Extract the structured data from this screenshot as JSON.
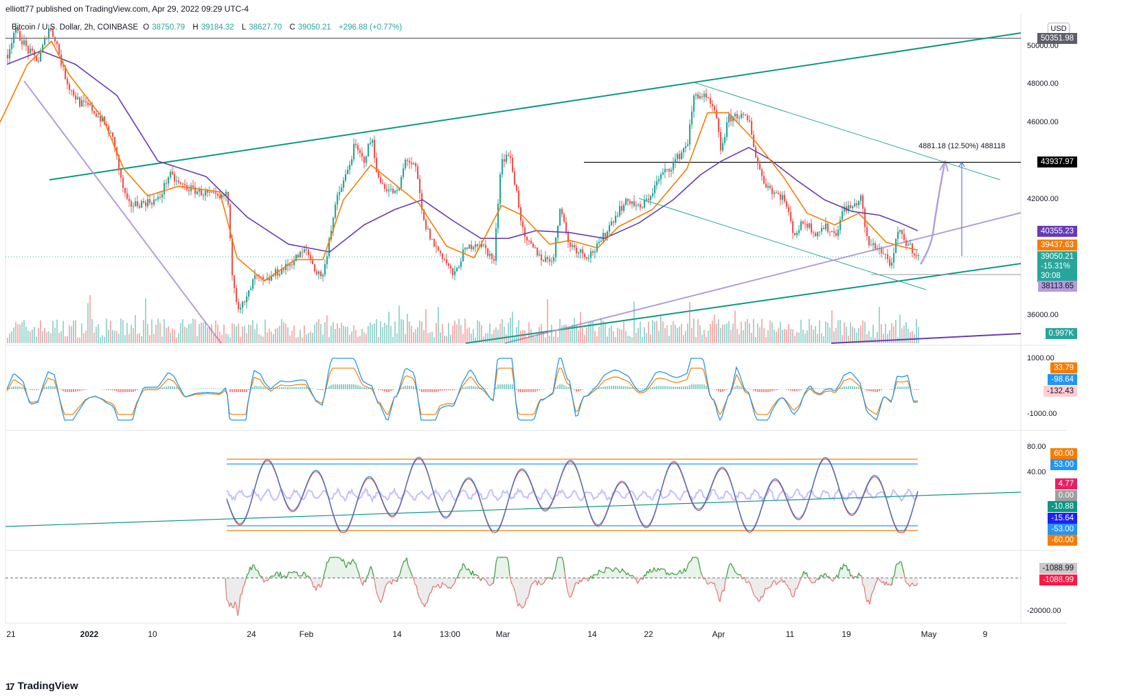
{
  "header": {
    "publisher": "elliott77 published on TradingView.com, Apr 29, 2022 09:29 UTC-4"
  },
  "symbol": {
    "name": "Bitcoin / U.S. Dollar, 2h, COINBASE",
    "o_label": "O",
    "o_value": "38750.79",
    "h_label": "H",
    "h_value": "39184.32",
    "l_label": "L",
    "l_value": "38627.70",
    "c_label": "C",
    "c_value": "39050.21",
    "change": "+296.88 (+0.77%)"
  },
  "currency": "USD",
  "price_axis_labels": [
    "50000.00",
    "48000.00",
    "46000.00",
    "42000.00",
    "36000.00"
  ],
  "macd_axis_labels": [
    "1000.00",
    "-1000.00"
  ],
  "rsi_axis_labels": [
    "80.00",
    "40.00"
  ],
  "bottom_axis_labels": [
    "-20000.00"
  ],
  "badges": {
    "top_line": "50351.98",
    "black_line": "43937.97",
    "purple_ma": "40355.23",
    "orange_ma": "39437.63",
    "last_price": "39050.21",
    "last_pct": "-15.31%",
    "countdown": "30:08",
    "lavender": "38113.65",
    "volume": "0.997K",
    "macd1": "33.79",
    "macd2": "-98.64",
    "macd3": "-132.43",
    "rsi_hi_orange": "60.00",
    "rsi_hi_blue": "53.00",
    "rsi_pink": "4.77",
    "rsi_zero": "0.00",
    "rsi_green": "-10.88",
    "rsi_blue2": "-15.64",
    "rsi_lo_blue": "-53.00",
    "rsi_lo_orange": "-60.00",
    "bot1": "-1088.99",
    "bot2": "-1088.99"
  },
  "annotation": "4881.18 (12.50%) 488118",
  "x_labels": [
    "21",
    "2022",
    "10",
    "24",
    "Feb",
    "14",
    "13:00",
    "Mar",
    "14",
    "22",
    "Apr",
    "11",
    "19",
    "May",
    "9"
  ],
  "footer": {
    "brand": "TradingView"
  },
  "colors": {
    "green": "#26a69a",
    "red": "#ef5350",
    "channel": "#089981",
    "orange_ma": "#f57c00",
    "purple_ma": "#673ab7",
    "lavender": "#b39ddb",
    "macd_blue": "#2196f3"
  },
  "chart_data": {
    "type": "candlestick",
    "ylim": [
      35000,
      51500
    ],
    "price_path": [
      [
        0,
        46000
      ],
      [
        10,
        49500
      ],
      [
        20,
        50800
      ],
      [
        32,
        50200
      ],
      [
        40,
        49700
      ],
      [
        55,
        49200
      ],
      [
        70,
        50900
      ],
      [
        80,
        50300
      ],
      [
        90,
        48800
      ],
      [
        100,
        47800
      ],
      [
        115,
        47000
      ],
      [
        130,
        46800
      ],
      [
        150,
        46000
      ],
      [
        165,
        45000
      ],
      [
        175,
        43000
      ],
      [
        185,
        41700
      ],
      [
        200,
        41800
      ],
      [
        215,
        41900
      ],
      [
        230,
        42000
      ],
      [
        245,
        43300
      ],
      [
        260,
        42800
      ],
      [
        280,
        42500
      ],
      [
        300,
        42300
      ],
      [
        320,
        42000
      ],
      [
        330,
        42400
      ],
      [
        336,
        38500
      ],
      [
        345,
        36500
      ],
      [
        355,
        36600
      ],
      [
        370,
        38000
      ],
      [
        385,
        37700
      ],
      [
        400,
        38200
      ],
      [
        415,
        38500
      ],
      [
        430,
        39000
      ],
      [
        445,
        39400
      ],
      [
        460,
        38200
      ],
      [
        470,
        38100
      ],
      [
        478,
        40000
      ],
      [
        490,
        42100
      ],
      [
        505,
        43500
      ],
      [
        515,
        44800
      ],
      [
        528,
        44000
      ],
      [
        540,
        45200
      ],
      [
        550,
        43000
      ],
      [
        565,
        42500
      ],
      [
        578,
        42300
      ],
      [
        590,
        44200
      ],
      [
        605,
        43500
      ],
      [
        615,
        40900
      ],
      [
        630,
        39700
      ],
      [
        645,
        39000
      ],
      [
        660,
        38000
      ],
      [
        672,
        39200
      ],
      [
        690,
        39800
      ],
      [
        705,
        39500
      ],
      [
        718,
        38800
      ],
      [
        728,
        44000
      ],
      [
        740,
        44400
      ],
      [
        752,
        42200
      ],
      [
        762,
        39900
      ],
      [
        775,
        39500
      ],
      [
        790,
        38900
      ],
      [
        805,
        39000
      ],
      [
        815,
        41900
      ],
      [
        825,
        39800
      ],
      [
        840,
        39400
      ],
      [
        855,
        39100
      ],
      [
        870,
        39600
      ],
      [
        885,
        40600
      ],
      [
        900,
        41500
      ],
      [
        915,
        42000
      ],
      [
        930,
        41500
      ],
      [
        945,
        42200
      ],
      [
        960,
        43200
      ],
      [
        975,
        43700
      ],
      [
        990,
        44400
      ],
      [
        1000,
        45000
      ],
      [
        1010,
        47500
      ],
      [
        1025,
        47300
      ],
      [
        1040,
        46500
      ],
      [
        1048,
        44600
      ],
      [
        1060,
        46200
      ],
      [
        1075,
        46400
      ],
      [
        1090,
        46000
      ],
      [
        1100,
        44100
      ],
      [
        1110,
        43000
      ],
      [
        1125,
        42400
      ],
      [
        1140,
        42100
      ],
      [
        1155,
        40200
      ],
      [
        1170,
        40900
      ],
      [
        1185,
        40300
      ],
      [
        1200,
        40600
      ],
      [
        1215,
        40200
      ],
      [
        1228,
        41600
      ],
      [
        1240,
        41600
      ],
      [
        1252,
        42100
      ],
      [
        1262,
        39700
      ],
      [
        1275,
        39600
      ],
      [
        1290,
        39000
      ],
      [
        1298,
        38500
      ],
      [
        1305,
        40400
      ],
      [
        1318,
        39800
      ],
      [
        1328,
        39400
      ],
      [
        1336,
        39050
      ]
    ],
    "ma_orange": [
      [
        0,
        46000
      ],
      [
        40,
        49000
      ],
      [
        75,
        50200
      ],
      [
        100,
        48500
      ],
      [
        150,
        46200
      ],
      [
        180,
        43600
      ],
      [
        215,
        42200
      ],
      [
        260,
        42700
      ],
      [
        320,
        42400
      ],
      [
        345,
        39000
      ],
      [
        385,
        37800
      ],
      [
        430,
        38900
      ],
      [
        470,
        38900
      ],
      [
        500,
        42000
      ],
      [
        540,
        43800
      ],
      [
        575,
        42800
      ],
      [
        610,
        41800
      ],
      [
        650,
        39600
      ],
      [
        690,
        39000
      ],
      [
        730,
        41700
      ],
      [
        760,
        41200
      ],
      [
        800,
        39700
      ],
      [
        830,
        39900
      ],
      [
        870,
        39500
      ],
      [
        900,
        40600
      ],
      [
        950,
        41500
      ],
      [
        1000,
        43600
      ],
      [
        1030,
        46500
      ],
      [
        1060,
        46500
      ],
      [
        1100,
        45000
      ],
      [
        1140,
        43200
      ],
      [
        1175,
        41300
      ],
      [
        1215,
        40700
      ],
      [
        1250,
        41300
      ],
      [
        1290,
        39800
      ],
      [
        1310,
        39600
      ],
      [
        1336,
        39400
      ]
    ],
    "ma_purple": [
      [
        10,
        49000
      ],
      [
        60,
        49700
      ],
      [
        110,
        49000
      ],
      [
        170,
        47400
      ],
      [
        230,
        44000
      ],
      [
        300,
        43200
      ],
      [
        360,
        41100
      ],
      [
        420,
        39700
      ],
      [
        480,
        39300
      ],
      [
        530,
        40700
      ],
      [
        575,
        41500
      ],
      [
        615,
        42000
      ],
      [
        660,
        40900
      ],
      [
        700,
        40000
      ],
      [
        740,
        40000
      ],
      [
        780,
        40400
      ],
      [
        830,
        40300
      ],
      [
        880,
        40000
      ],
      [
        930,
        40800
      ],
      [
        980,
        42000
      ],
      [
        1020,
        43300
      ],
      [
        1050,
        44000
      ],
      [
        1090,
        44700
      ],
      [
        1120,
        44100
      ],
      [
        1160,
        43000
      ],
      [
        1200,
        42000
      ],
      [
        1240,
        41400
      ],
      [
        1280,
        41200
      ],
      [
        1310,
        40800
      ],
      [
        1336,
        40400
      ]
    ],
    "top_line_value": 50351.98,
    "black_line_value": 43937.97,
    "last_price": 39050.21,
    "lavender_value": 38113.65
  }
}
